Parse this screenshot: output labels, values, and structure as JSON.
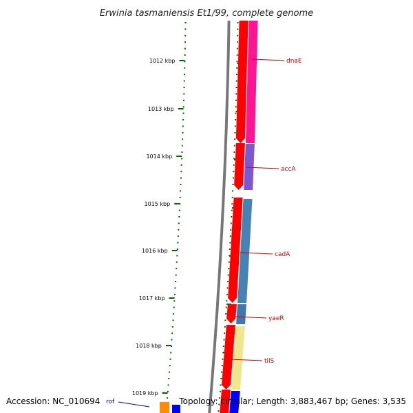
{
  "title": "Erwinia tasmaniensis Et1/99, complete genome",
  "accession": "Accession: NC_010694",
  "topology": "Topology: circular; Length: 3,883,467 bp; Genes: 3,535",
  "colors": {
    "backbone": "#777777",
    "tick_green": "#006400",
    "forward_strand": "#ff0000",
    "label_red": "#cc0000",
    "label_blue": "#0000cc"
  },
  "position_labels": [
    "1012 kbp",
    "1013 kbp",
    "1014 kbp",
    "1015 kbp",
    "1016 kbp",
    "1017 kbp",
    "1018 kbp",
    "1019 kbp"
  ],
  "genes": [
    {
      "name": "dnaE",
      "color": "#ff1493",
      "label_color": "#cc0000"
    },
    {
      "name": "accA",
      "color": "#7b57d1",
      "label_color": "#cc0000"
    },
    {
      "name": "cadA",
      "color": "#4682b4",
      "label_color": "#cc0000"
    },
    {
      "name": "yaeR",
      "color": "#3f78b0",
      "label_color": "#cc0000"
    },
    {
      "name": "tilS",
      "color": "#f0e68c",
      "label_color": "#cc0000"
    },
    {
      "name": "rof",
      "color": "#0000ff",
      "label_color": "#0000cc"
    }
  ]
}
